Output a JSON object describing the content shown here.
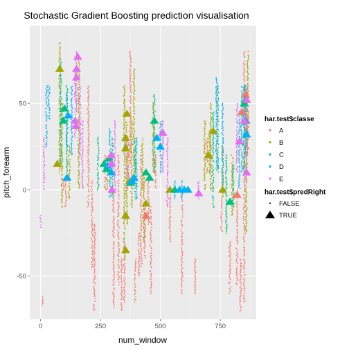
{
  "chart_data": {
    "type": "scatter",
    "title": "Stochastic Gradient Boosting prediction visualisation",
    "xlabel": "num_window",
    "ylabel": "pitch_forearm",
    "xlim": [
      -45,
      900
    ],
    "ylim": [
      -75,
      95
    ],
    "x_ticks": [
      {
        "value": 0,
        "label": "0"
      },
      {
        "value": 250,
        "label": "250"
      },
      {
        "value": 500,
        "label": "500"
      },
      {
        "value": 750,
        "label": "750"
      }
    ],
    "y_ticks": [
      {
        "value": -50,
        "label": "-50"
      },
      {
        "value": 0,
        "label": "0"
      },
      {
        "value": 50,
        "label": "50"
      }
    ],
    "grid": true,
    "legend_position": "right",
    "colors": {
      "A": "#F8766D",
      "B": "#A3A500",
      "C": "#00BF7D",
      "D": "#00B0F6",
      "E": "#E76BF3",
      "panel": "#EBEBEB",
      "grid_major": "#FFFFFF",
      "grid_minor": "#F2F2F2"
    },
    "legends": [
      {
        "title": "har.test$classe",
        "items": [
          "A",
          "B",
          "C",
          "D",
          "E"
        ]
      },
      {
        "title": "har.test$predRight",
        "items": [
          "FALSE",
          "TRUE"
        ]
      }
    ],
    "series": [
      {
        "classe": "A",
        "bands": [
          {
            "x": 8,
            "y": [
              -67,
              -62
            ]
          },
          {
            "x": 95,
            "y": [
              0,
              6
            ]
          },
          {
            "x": 105,
            "y": [
              -10,
              5
            ]
          },
          {
            "x": 200,
            "y": [
              -10,
              60
            ]
          },
          {
            "x": 215,
            "y": [
              -45,
              5
            ]
          },
          {
            "x": 225,
            "y": [
              -70,
              -20
            ]
          },
          {
            "x": 270,
            "y": [
              0,
              20
            ]
          },
          {
            "x": 305,
            "y": [
              -68,
              0
            ]
          },
          {
            "x": 325,
            "y": [
              -55,
              20
            ]
          },
          {
            "x": 338,
            "y": [
              -70,
              -40
            ]
          },
          {
            "x": 350,
            "y": [
              -65,
              -30
            ]
          },
          {
            "x": 365,
            "y": [
              5,
              25
            ]
          },
          {
            "x": 375,
            "y": [
              15,
              80
            ]
          },
          {
            "x": 395,
            "y": [
              -65,
              -40
            ]
          },
          {
            "x": 410,
            "y": [
              -50,
              -25
            ]
          },
          {
            "x": 420,
            "y": [
              -45,
              20
            ]
          },
          {
            "x": 435,
            "y": [
              -40,
              -10
            ]
          },
          {
            "x": 450,
            "y": [
              -20,
              5
            ]
          },
          {
            "x": 460,
            "y": [
              -60,
              -10
            ]
          },
          {
            "x": 480,
            "y": [
              0,
              20
            ]
          },
          {
            "x": 540,
            "y": [
              -30,
              0
            ]
          },
          {
            "x": 590,
            "y": [
              -60,
              0
            ]
          },
          {
            "x": 645,
            "y": [
              -60,
              -40
            ]
          },
          {
            "x": 695,
            "y": [
              10,
              30
            ]
          },
          {
            "x": 755,
            "y": [
              -25,
              -5
            ]
          },
          {
            "x": 790,
            "y": [
              -60,
              -30
            ]
          },
          {
            "x": 820,
            "y": [
              -55,
              0
            ]
          },
          {
            "x": 835,
            "y": [
              -70,
              -40
            ]
          },
          {
            "x": 850,
            "y": [
              -65,
              80
            ]
          },
          {
            "x": 862,
            "y": [
              20,
              60
            ]
          }
        ],
        "triangles": [
          [
            440,
            -15
          ],
          [
            820,
            -3
          ],
          [
            840,
            45
          ],
          [
            858,
            40
          ],
          [
            855,
            55
          ]
        ]
      },
      {
        "classe": "B",
        "bands": [
          {
            "x": 80,
            "y": [
              10,
              85
            ]
          },
          {
            "x": 90,
            "y": [
              -10,
              50
            ]
          },
          {
            "x": 120,
            "y": [
              -5,
              25
            ]
          },
          {
            "x": 160,
            "y": [
              0,
              75
            ]
          },
          {
            "x": 280,
            "y": [
              0,
              15
            ]
          },
          {
            "x": 350,
            "y": [
              -40,
              60
            ]
          },
          {
            "x": 360,
            "y": [
              -20,
              40
            ]
          },
          {
            "x": 380,
            "y": [
              -10,
              40
            ]
          },
          {
            "x": 390,
            "y": [
              5,
              70
            ]
          },
          {
            "x": 425,
            "y": [
              0,
              30
            ]
          },
          {
            "x": 432,
            "y": [
              -30,
              10
            ]
          },
          {
            "x": 470,
            "y": [
              10,
              50
            ]
          },
          {
            "x": 685,
            "y": [
              0,
              40
            ]
          },
          {
            "x": 705,
            "y": [
              10,
              35
            ]
          },
          {
            "x": 710,
            "y": [
              0,
              50
            ]
          },
          {
            "x": 760,
            "y": [
              -5,
              25
            ]
          },
          {
            "x": 800,
            "y": [
              -15,
              20
            ]
          },
          {
            "x": 858,
            "y": [
              -25,
              60
            ]
          },
          {
            "x": 865,
            "y": [
              20,
              80
            ]
          }
        ],
        "triangles": [
          [
            80,
            70
          ],
          [
            70,
            15
          ],
          [
            355,
            30
          ],
          [
            355,
            24
          ],
          [
            360,
            44
          ],
          [
            355,
            -15
          ],
          [
            355,
            -35
          ],
          [
            372,
            5
          ],
          [
            440,
            -8
          ],
          [
            540,
            0
          ],
          [
            700,
            20
          ],
          [
            720,
            34
          ],
          [
            760,
            0
          ],
          [
            860,
            52
          ]
        ]
      },
      {
        "classe": "C",
        "bands": [
          {
            "x": 85,
            "y": [
              15,
              75
            ]
          },
          {
            "x": 110,
            "y": [
              10,
              60
            ]
          },
          {
            "x": 240,
            "y": [
              0,
              30
            ]
          },
          {
            "x": 300,
            "y": [
              -5,
              30
            ]
          },
          {
            "x": 395,
            "y": [
              -5,
              30
            ]
          },
          {
            "x": 475,
            "y": [
              10,
              55
            ]
          },
          {
            "x": 720,
            "y": [
              -10,
              45
            ]
          },
          {
            "x": 740,
            "y": [
              10,
              60
            ]
          },
          {
            "x": 775,
            "y": [
              -25,
              20
            ]
          },
          {
            "x": 805,
            "y": [
              -10,
              15
            ]
          },
          {
            "x": 850,
            "y": [
              10,
              60
            ]
          }
        ],
        "triangles": [
          [
            95,
            40
          ],
          [
            100,
            47
          ],
          [
            265,
            15
          ],
          [
            275,
            12
          ],
          [
            285,
            18
          ],
          [
            375,
            4
          ],
          [
            440,
            10
          ],
          [
            455,
            7
          ],
          [
            475,
            40
          ],
          [
            560,
            0
          ],
          [
            790,
            -7
          ],
          [
            850,
            50
          ],
          [
            855,
            52
          ]
        ]
      },
      {
        "classe": "D",
        "bands": [
          {
            "x": 25,
            "y": [
              25,
              60
            ]
          },
          {
            "x": 35,
            "y": [
              40,
              60
            ]
          },
          {
            "x": 110,
            "y": [
              25,
              55
            ]
          },
          {
            "x": 130,
            "y": [
              20,
              60
            ]
          },
          {
            "x": 290,
            "y": [
              -5,
              35
            ]
          },
          {
            "x": 400,
            "y": [
              -5,
              30
            ]
          },
          {
            "x": 500,
            "y": [
              10,
              40
            ]
          },
          {
            "x": 560,
            "y": [
              -5,
              5
            ]
          },
          {
            "x": 590,
            "y": [
              -5,
              5
            ]
          },
          {
            "x": 735,
            "y": [
              10,
              65
            ]
          },
          {
            "x": 760,
            "y": [
              0,
              50
            ]
          },
          {
            "x": 830,
            "y": [
              0,
              45
            ]
          },
          {
            "x": 840,
            "y": [
              10,
              60
            ]
          },
          {
            "x": 855,
            "y": [
              20,
              60
            ]
          }
        ],
        "triangles": [
          [
            115,
            43
          ],
          [
            110,
            7
          ],
          [
            280,
            14
          ],
          [
            295,
            10
          ],
          [
            380,
            5
          ],
          [
            390,
            7
          ],
          [
            485,
            30
          ],
          [
            500,
            25
          ],
          [
            580,
            0
          ],
          [
            600,
            0
          ],
          [
            615,
            0
          ],
          [
            855,
            40
          ],
          [
            860,
            32
          ]
        ]
      },
      {
        "classe": "E",
        "bands": [
          {
            "x": 0,
            "y": [
              -22,
              -15
            ]
          },
          {
            "x": 15,
            "y": [
              0,
              30
            ]
          },
          {
            "x": 145,
            "y": [
              30,
              70
            ]
          },
          {
            "x": 150,
            "y": [
              45,
              80
            ]
          },
          {
            "x": 165,
            "y": [
              20,
              60
            ]
          },
          {
            "x": 175,
            "y": [
              0,
              40
            ]
          },
          {
            "x": 310,
            "y": [
              0,
              40
            ]
          },
          {
            "x": 365,
            "y": [
              0,
              30
            ]
          },
          {
            "x": 510,
            "y": [
              10,
              40
            ]
          },
          {
            "x": 530,
            "y": [
              -10,
              30
            ]
          },
          {
            "x": 660,
            "y": [
              -5,
              5
            ]
          },
          {
            "x": 820,
            "y": [
              10,
              50
            ]
          },
          {
            "x": 860,
            "y": [
              5,
              60
            ]
          }
        ],
        "triangles": [
          [
            145,
            40
          ],
          [
            148,
            37
          ],
          [
            150,
            65
          ],
          [
            150,
            70
          ],
          [
            155,
            77
          ],
          [
            295,
            15
          ],
          [
            298,
            0
          ],
          [
            295,
            20
          ],
          [
            510,
            33
          ],
          [
            660,
            -2
          ],
          [
            830,
            28
          ],
          [
            860,
            10
          ],
          [
            850,
            40
          ],
          [
            860,
            52
          ]
        ]
      }
    ]
  }
}
